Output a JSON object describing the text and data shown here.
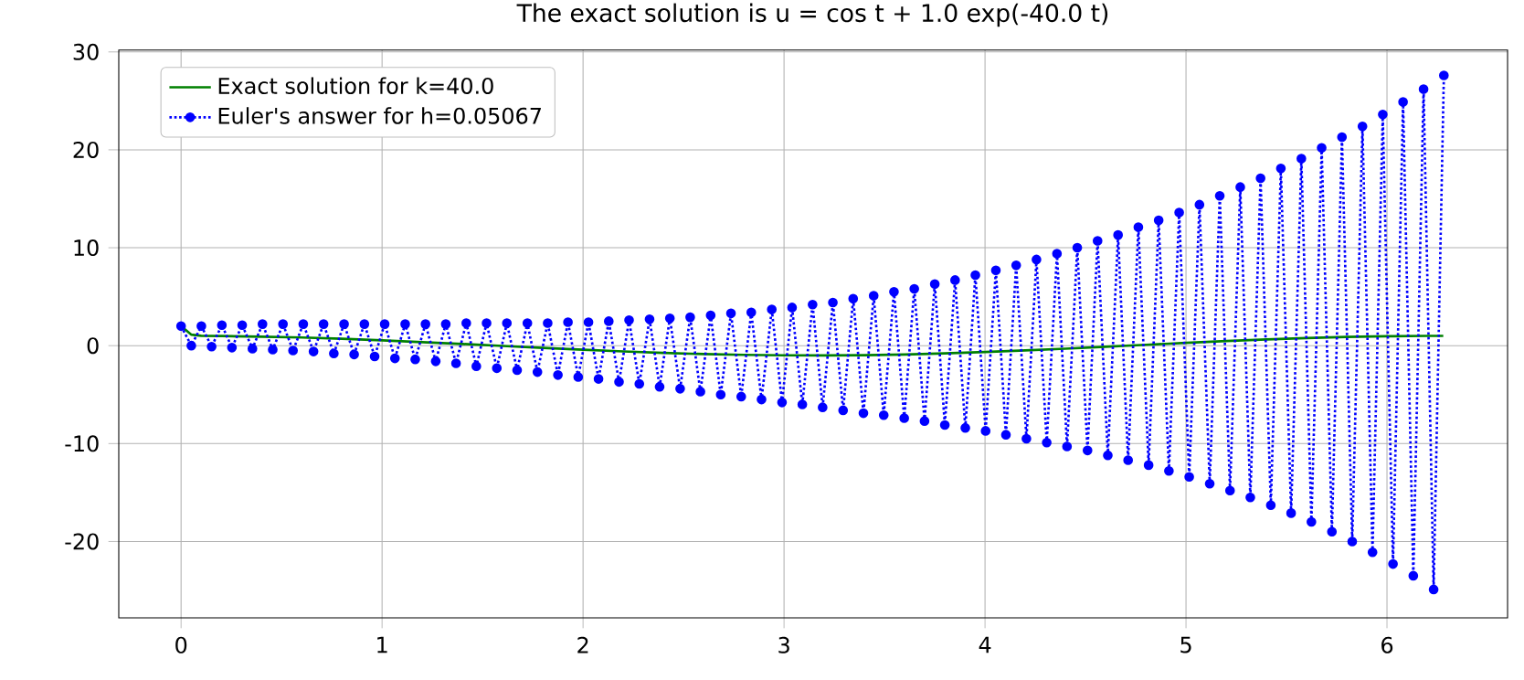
{
  "chart_data": {
    "type": "line",
    "title": "The exact solution is u = cos t + 1.0 exp(-40.0 t)",
    "xlim": [
      -0.31,
      6.6
    ],
    "ylim": [
      -27.8,
      30.2
    ],
    "xticks": [
      0,
      1,
      2,
      3,
      4,
      5,
      6
    ],
    "yticks": [
      -20,
      -10,
      0,
      10,
      20,
      30
    ],
    "grid": true,
    "legend": "top left",
    "series": [
      {
        "name": "Exact solution for k=40.0",
        "color": "#008000",
        "marker": "none",
        "line_style": "solid",
        "x": [
          0,
          0.05,
          0.1,
          0.2,
          0.4,
          0.6,
          0.8,
          1.0,
          1.2,
          1.4,
          1.6,
          1.8,
          2.0,
          2.2,
          2.4,
          2.6,
          2.8,
          3.0,
          3.2,
          3.4,
          3.6,
          3.8,
          4.0,
          4.2,
          4.4,
          4.6,
          4.8,
          5.0,
          5.2,
          5.4,
          5.6,
          5.8,
          6.0,
          6.2,
          6.28
        ],
        "values": [
          2.0,
          1.13,
          1.01,
          0.98,
          0.92,
          0.83,
          0.7,
          0.54,
          0.36,
          0.17,
          -0.03,
          -0.23,
          -0.42,
          -0.59,
          -0.74,
          -0.86,
          -0.94,
          -0.99,
          -1.0,
          -0.97,
          -0.9,
          -0.79,
          -0.65,
          -0.49,
          -0.31,
          -0.11,
          0.09,
          0.28,
          0.47,
          0.63,
          0.78,
          0.89,
          0.96,
          1.0,
          1.0
        ]
      },
      {
        "name": "Euler's answer for h=0.05067",
        "color": "#0000ff",
        "marker": "circle",
        "line_style": "dotted",
        "x": [
          0,
          0.051,
          0.101,
          0.152,
          0.203,
          0.253,
          0.304,
          0.355,
          0.405,
          0.456,
          0.507,
          0.557,
          0.608,
          0.659,
          0.709,
          0.76,
          0.811,
          0.861,
          0.912,
          0.963,
          1.013,
          1.064,
          1.115,
          1.165,
          1.216,
          1.267,
          1.317,
          1.368,
          1.419,
          1.469,
          1.52,
          1.571,
          1.621,
          1.672,
          1.723,
          1.773,
          1.824,
          1.875,
          1.925,
          1.976,
          2.027,
          2.077,
          2.128,
          2.179,
          2.229,
          2.28,
          2.331,
          2.381,
          2.432,
          2.483,
          2.533,
          2.584,
          2.635,
          2.685,
          2.736,
          2.787,
          2.837,
          2.888,
          2.939,
          2.99,
          3.04,
          3.091,
          3.142,
          3.192,
          3.243,
          3.294,
          3.344,
          3.395,
          3.446,
          3.496,
          3.547,
          3.598,
          3.648,
          3.699,
          3.75,
          3.8,
          3.851,
          3.902,
          3.952,
          4.003,
          4.054,
          4.104,
          4.155,
          4.206,
          4.256,
          4.307,
          4.358,
          4.408,
          4.459,
          4.51,
          4.56,
          4.611,
          4.662,
          4.712,
          4.763,
          4.814,
          4.864,
          4.915,
          4.966,
          5.016,
          5.067,
          5.118,
          5.168,
          5.219,
          5.27,
          5.32,
          5.371,
          5.422,
          5.472,
          5.523,
          5.574,
          5.624,
          5.675,
          5.726,
          5.776,
          5.827,
          5.878,
          5.928,
          5.979,
          6.03,
          6.08,
          6.131,
          6.182,
          6.232,
          6.283
        ],
        "values": [
          2.0,
          -0.0,
          2.0,
          -0.1,
          2.1,
          -0.2,
          2.1,
          -0.3,
          2.2,
          -0.4,
          2.2,
          -0.5,
          2.2,
          -0.6,
          2.2,
          -0.8,
          2.2,
          -0.9,
          2.2,
          -1.1,
          2.2,
          -1.3,
          2.2,
          -1.4,
          2.2,
          -1.6,
          2.2,
          -1.8,
          2.3,
          -2.1,
          2.3,
          -2.3,
          2.3,
          -2.5,
          2.3,
          -2.7,
          2.3,
          -3.0,
          2.4,
          -3.2,
          2.4,
          -3.4,
          2.5,
          -3.7,
          2.6,
          -3.9,
          2.7,
          -4.2,
          2.8,
          -4.4,
          2.9,
          -4.7,
          3.1,
          -5.0,
          3.3,
          -5.2,
          3.4,
          -5.5,
          3.7,
          -5.8,
          3.9,
          -6.0,
          4.2,
          -6.3,
          4.4,
          -6.6,
          4.8,
          -6.9,
          5.1,
          -7.1,
          5.5,
          -7.4,
          5.8,
          -7.7,
          6.3,
          -8.1,
          6.7,
          -8.4,
          7.2,
          -8.7,
          7.7,
          -9.1,
          8.2,
          -9.5,
          8.8,
          -9.9,
          9.4,
          -10.3,
          10.0,
          -10.7,
          10.7,
          -11.2,
          11.3,
          -11.7,
          12.1,
          -12.2,
          12.8,
          -12.8,
          13.6,
          -13.4,
          14.4,
          -14.1,
          15.3,
          -14.8,
          16.2,
          -15.5,
          17.1,
          -16.3,
          18.1,
          -17.1,
          19.1,
          -18.0,
          20.2,
          -19.0,
          21.3,
          -20.0,
          22.4,
          -21.1,
          23.6,
          -22.3,
          24.9,
          -23.5,
          26.2,
          -24.9,
          27.6
        ]
      }
    ]
  }
}
